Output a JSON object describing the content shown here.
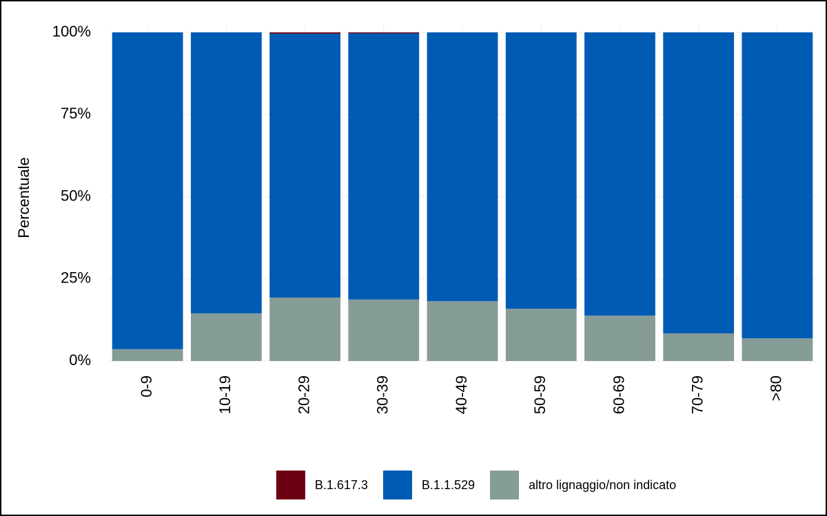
{
  "chart_data": {
    "type": "stacked_bar",
    "y_label": "Percentuale",
    "categories": [
      "0-9",
      "10-19",
      "20-29",
      "30-39",
      "40-49",
      "50-59",
      "60-69",
      "70-79",
      ">80"
    ],
    "series": [
      {
        "name": "altro lignaggio/non indicato",
        "color": "#869c97",
        "values": [
          3.6,
          14.5,
          19.3,
          18.7,
          18.2,
          15.9,
          13.8,
          8.4,
          6.9
        ]
      },
      {
        "name": "B.1.1.529",
        "color": "#005bb5",
        "values": [
          96.4,
          85.5,
          80.3,
          81.0,
          81.8,
          84.1,
          86.2,
          91.6,
          93.1
        ]
      },
      {
        "name": "B.1.617.3",
        "color": "#6b0010",
        "values": [
          0,
          0,
          0.4,
          0.3,
          0,
          0,
          0,
          0,
          0
        ]
      }
    ],
    "legend_order": [
      2,
      1,
      0
    ],
    "ylim": [
      0,
      100
    ],
    "yticks": [
      {
        "value": 0,
        "label": "0%"
      },
      {
        "value": 25,
        "label": "25%"
      },
      {
        "value": 50,
        "label": "50%"
      },
      {
        "value": 75,
        "label": "75%"
      },
      {
        "value": 100,
        "label": "100%"
      }
    ],
    "grid": true
  }
}
